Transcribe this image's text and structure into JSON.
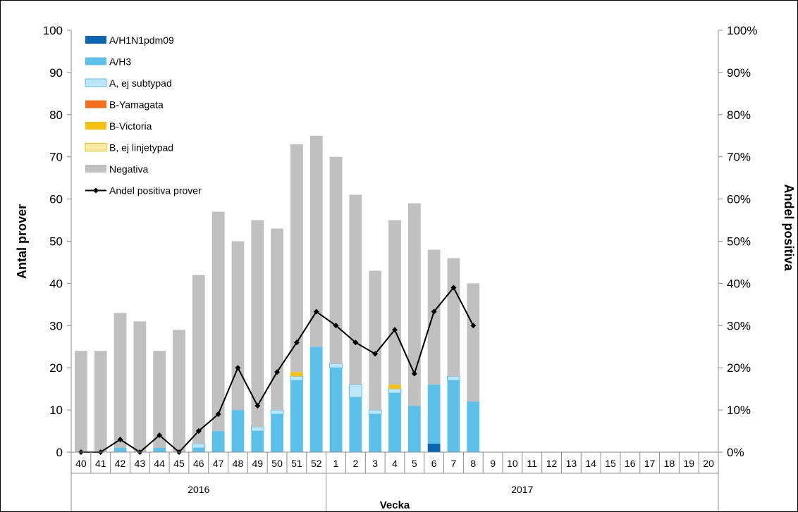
{
  "chart_data": {
    "type": "bar",
    "stacked": true,
    "xlabel": "Vecka",
    "ylabel": "Antal prover",
    "y2label": "Andel positiva",
    "ylim": [
      0,
      100
    ],
    "y2lim": [
      0,
      100
    ],
    "yticks": [
      "0",
      "10",
      "20",
      "30",
      "40",
      "50",
      "60",
      "70",
      "80",
      "90",
      "100"
    ],
    "y2ticks": [
      "0%",
      "10%",
      "20%",
      "30%",
      "40%",
      "50%",
      "60%",
      "70%",
      "80%",
      "90%",
      "100%"
    ],
    "categories": [
      "40",
      "41",
      "42",
      "43",
      "44",
      "45",
      "46",
      "47",
      "48",
      "49",
      "50",
      "51",
      "52",
      "1",
      "2",
      "3",
      "4",
      "5",
      "6",
      "7",
      "8",
      "9",
      "10",
      "11",
      "12",
      "13",
      "14",
      "15",
      "16",
      "17",
      "18",
      "19",
      "20"
    ],
    "year_groups": [
      {
        "label": "2016",
        "count": 13
      },
      {
        "label": "2017",
        "count": 20
      }
    ],
    "legend_position": "top-left",
    "series": [
      {
        "name": "A/H1N1pdm09",
        "color": "#0b65b3",
        "kind": "bar",
        "values": [
          0,
          0,
          0,
          0,
          0,
          0,
          0,
          0,
          0,
          0,
          0,
          0,
          0,
          0,
          0,
          0,
          0,
          0,
          2,
          0,
          0,
          null,
          null,
          null,
          null,
          null,
          null,
          null,
          null,
          null,
          null,
          null,
          null
        ]
      },
      {
        "name": "A/H3",
        "color": "#5bc0ea",
        "kind": "bar",
        "values": [
          0,
          0,
          1,
          0,
          1,
          0,
          1,
          5,
          10,
          5,
          9,
          17,
          25,
          20,
          13,
          9,
          14,
          11,
          14,
          17,
          12,
          null,
          null,
          null,
          null,
          null,
          null,
          null,
          null,
          null,
          null,
          null,
          null
        ]
      },
      {
        "name": "A, ej subtypad",
        "color": "#bde7f8",
        "kind": "bar",
        "values": [
          0,
          0,
          0,
          0,
          0,
          0,
          1,
          0,
          0,
          1,
          1,
          1,
          0,
          1,
          3,
          1,
          1,
          0,
          0,
          1,
          0,
          null,
          null,
          null,
          null,
          null,
          null,
          null,
          null,
          null,
          null,
          null,
          null
        ]
      },
      {
        "name": "B-Yamagata",
        "color": "#f36f1c",
        "kind": "bar",
        "values": [
          0,
          0,
          0,
          0,
          0,
          0,
          0,
          0,
          0,
          0,
          0,
          0,
          0,
          0,
          0,
          0,
          0,
          0,
          0,
          0,
          0,
          null,
          null,
          null,
          null,
          null,
          null,
          null,
          null,
          null,
          null,
          null,
          null
        ]
      },
      {
        "name": "B-Victoria",
        "color": "#f5c010",
        "kind": "bar",
        "values": [
          0,
          0,
          0,
          0,
          0,
          0,
          0,
          0,
          0,
          0,
          0,
          1,
          0,
          0,
          0,
          0,
          1,
          0,
          0,
          0,
          0,
          null,
          null,
          null,
          null,
          null,
          null,
          null,
          null,
          null,
          null,
          null,
          null
        ]
      },
      {
        "name": "B, ej linjetypad",
        "color": "#fdeaa2",
        "kind": "bar",
        "values": [
          0,
          0,
          0,
          0,
          0,
          0,
          0,
          0,
          0,
          0,
          0,
          0,
          0,
          0,
          0,
          0,
          0,
          0,
          0,
          0,
          0,
          null,
          null,
          null,
          null,
          null,
          null,
          null,
          null,
          null,
          null,
          null,
          null
        ]
      },
      {
        "name": "Negativa",
        "color": "#c0c0c0",
        "kind": "bar",
        "values": [
          24,
          24,
          32,
          31,
          23,
          29,
          40,
          52,
          40,
          49,
          43,
          54,
          50,
          49,
          45,
          33,
          39,
          48,
          32,
          28,
          28,
          null,
          null,
          null,
          null,
          null,
          null,
          null,
          null,
          null,
          null,
          null,
          null
        ]
      },
      {
        "name": "Andel positiva prover",
        "color": "#000000",
        "kind": "line",
        "values": [
          0,
          0,
          3,
          0,
          4,
          0,
          5,
          9,
          20,
          11,
          19,
          26,
          33.3,
          30,
          26,
          23.3,
          29,
          18.6,
          33.3,
          39,
          30,
          null,
          null,
          null,
          null,
          null,
          null,
          null,
          null,
          null,
          null,
          null,
          null
        ]
      }
    ]
  }
}
